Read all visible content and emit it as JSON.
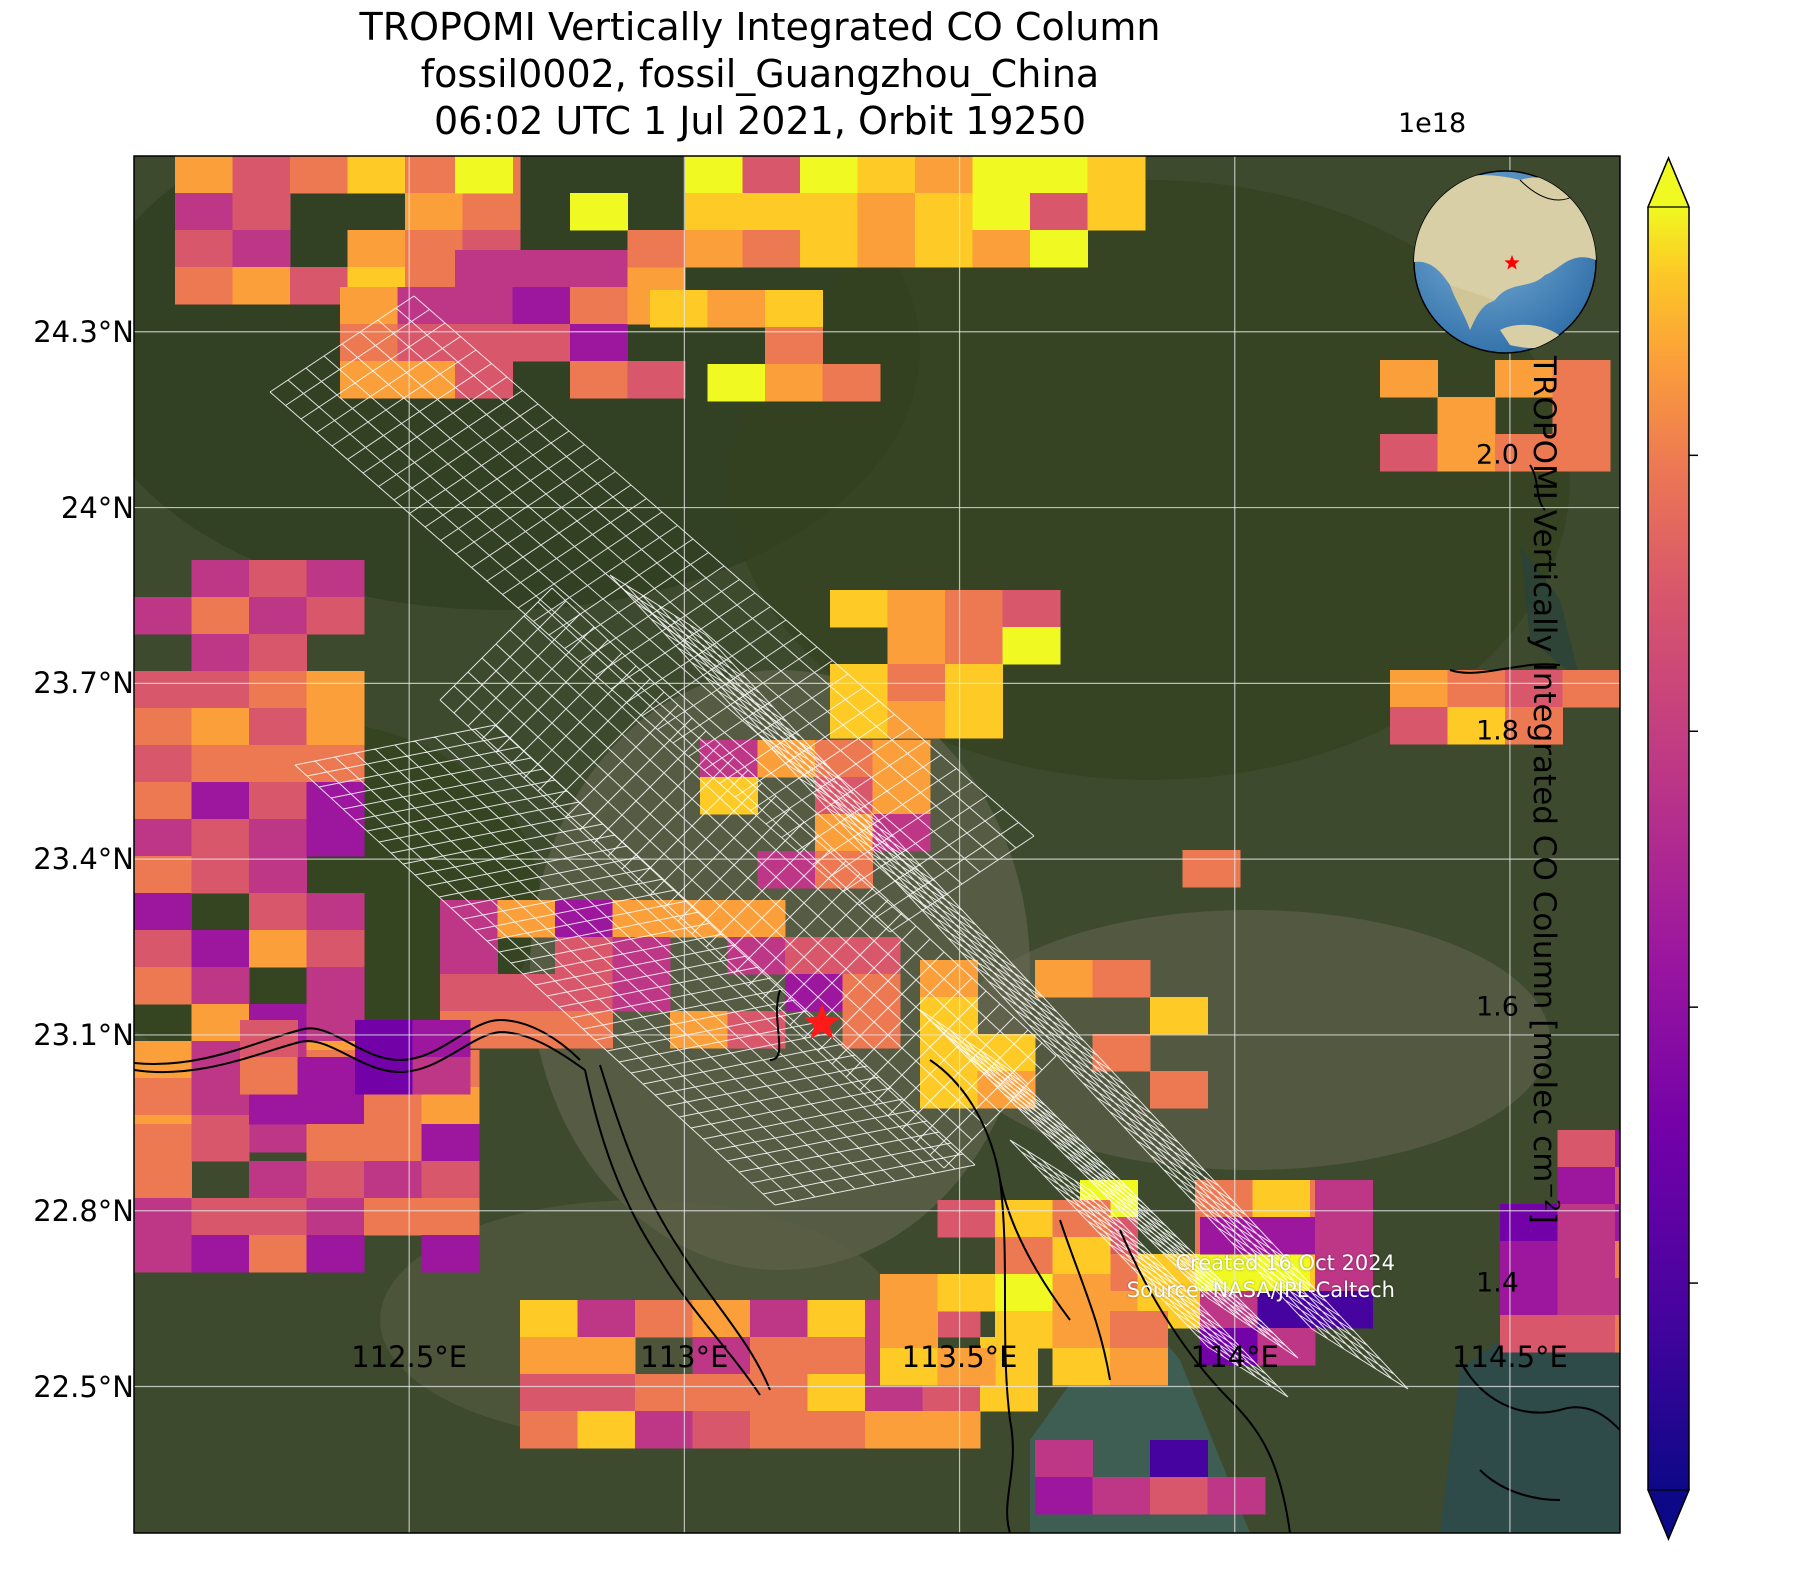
{
  "title": {
    "line1": "TROPOMI Vertically Integrated CO Column",
    "line2": "fossil0002, fossil_Guangzhou_China",
    "line3": "06:02 UTC 1 Jul 2021, Orbit 19250"
  },
  "map": {
    "lon_range": [
      112.0,
      114.7
    ],
    "lat_range": [
      22.25,
      24.6
    ],
    "lat_ticks": [
      {
        "value": 24.3,
        "label": "24.3°N"
      },
      {
        "value": 24.0,
        "label": "24°N"
      },
      {
        "value": 23.7,
        "label": "23.7°N"
      },
      {
        "value": 23.4,
        "label": "23.4°N"
      },
      {
        "value": 23.1,
        "label": "23.1°N"
      },
      {
        "value": 22.8,
        "label": "22.8°N"
      },
      {
        "value": 22.5,
        "label": "22.5°N"
      }
    ],
    "lon_ticks": [
      {
        "value": 112.5,
        "label": "112.5°E"
      },
      {
        "value": 113.0,
        "label": "113°E"
      },
      {
        "value": 113.5,
        "label": "113.5°E"
      },
      {
        "value": 114.0,
        "label": "114°E"
      },
      {
        "value": 114.5,
        "label": "114.5°E"
      }
    ],
    "target_marker": {
      "lon": 113.25,
      "lat": 23.12,
      "symbol": "star-icon",
      "color": "#ff0000"
    },
    "basemap": "satellite",
    "gridlines": true,
    "inset_globe": {
      "position": "top-right",
      "marker_color": "#ff0000"
    }
  },
  "colorbar": {
    "label": "TROPOMI Vertically Integrated CO Column [molec cm",
    "label_sup": "−2",
    "label_end": "]",
    "exponent": "1e18",
    "range": [
      1.25,
      2.18
    ],
    "colormap": "plasma",
    "extend": "both",
    "ticks": [
      {
        "value": 1.4,
        "label": "1.4"
      },
      {
        "value": 1.6,
        "label": "1.6"
      },
      {
        "value": 1.8,
        "label": "1.8"
      },
      {
        "value": 2.0,
        "label": "2.0"
      }
    ]
  },
  "credits": {
    "created": "Created 16 Oct 2024",
    "source": "Source: NASA/JPL-Caltech"
  }
}
